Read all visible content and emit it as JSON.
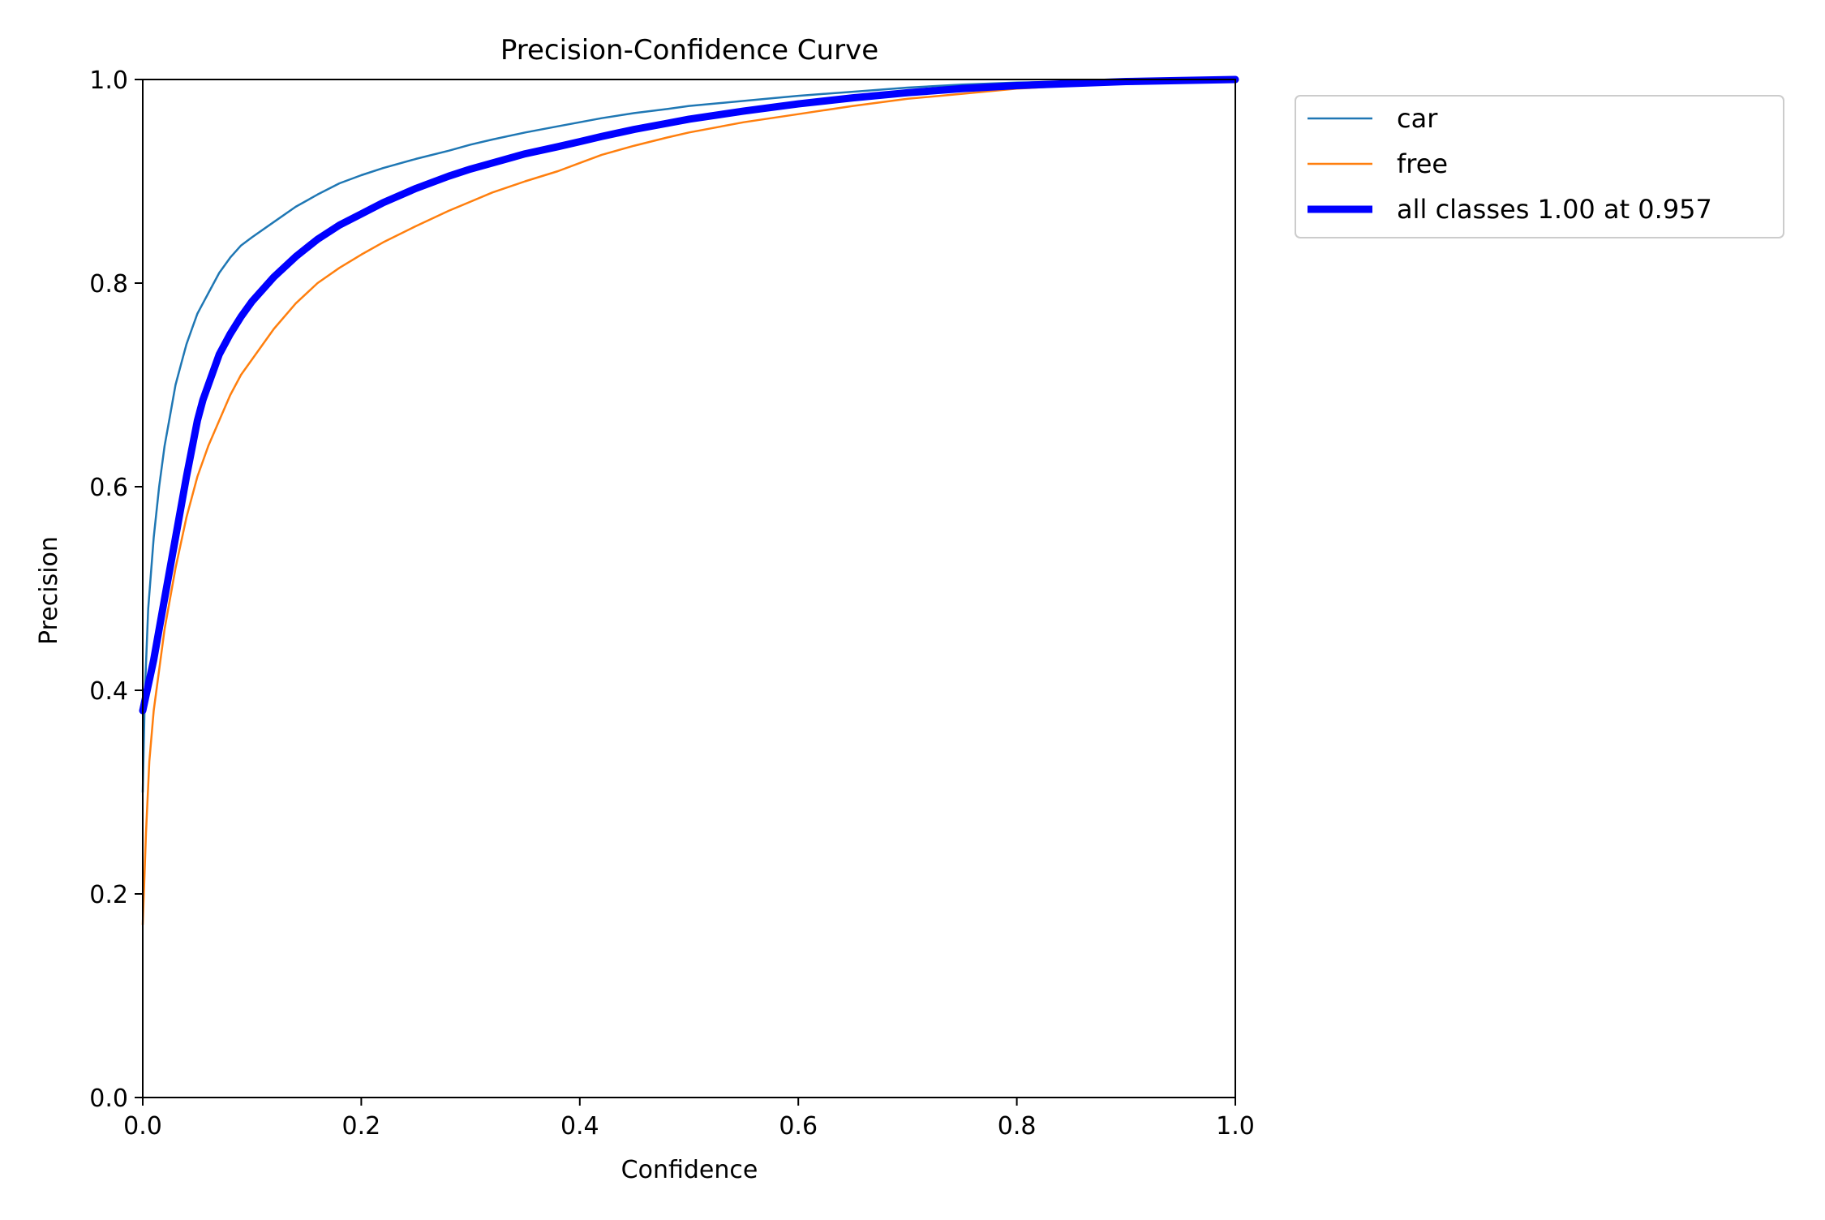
{
  "chart_data": {
    "type": "line",
    "title": "Precision-Confidence Curve",
    "xlabel": "Confidence",
    "ylabel": "Precision",
    "xlim": [
      0,
      1
    ],
    "ylim": [
      0,
      1
    ],
    "x_ticks": [
      0.0,
      0.2,
      0.4,
      0.6,
      0.8,
      1.0
    ],
    "y_ticks": [
      0.0,
      0.2,
      0.4,
      0.6,
      0.8,
      1.0
    ],
    "x_tick_labels": [
      "0.0",
      "0.2",
      "0.4",
      "0.6",
      "0.8",
      "1.0"
    ],
    "y_tick_labels": [
      "0.0",
      "0.2",
      "0.4",
      "0.6",
      "0.8",
      "1.0"
    ],
    "grid": false,
    "legend_position": "outside-top-right",
    "series": [
      {
        "name": "car",
        "legend_label": "car",
        "color": "#1f77b4",
        "x": [
          0.0,
          0.002,
          0.005,
          0.01,
          0.015,
          0.02,
          0.025,
          0.03,
          0.035,
          0.04,
          0.045,
          0.05,
          0.06,
          0.07,
          0.08,
          0.09,
          0.1,
          0.12,
          0.14,
          0.16,
          0.18,
          0.2,
          0.22,
          0.25,
          0.28,
          0.3,
          0.32,
          0.35,
          0.38,
          0.4,
          0.42,
          0.45,
          0.48,
          0.5,
          0.55,
          0.6,
          0.65,
          0.7,
          0.75,
          0.8,
          0.85,
          0.9,
          0.95,
          1.0
        ],
        "values": [
          0.3,
          0.4,
          0.48,
          0.55,
          0.6,
          0.64,
          0.67,
          0.7,
          0.72,
          0.74,
          0.755,
          0.77,
          0.79,
          0.81,
          0.825,
          0.837,
          0.845,
          0.86,
          0.875,
          0.887,
          0.898,
          0.906,
          0.913,
          0.922,
          0.93,
          0.936,
          0.941,
          0.948,
          0.954,
          0.958,
          0.962,
          0.967,
          0.971,
          0.974,
          0.979,
          0.984,
          0.988,
          0.992,
          0.995,
          0.997,
          0.998,
          0.999,
          0.9995,
          1.0
        ]
      },
      {
        "name": "free",
        "legend_label": "free",
        "color": "#ff7f0e",
        "x": [
          0.0,
          0.003,
          0.006,
          0.01,
          0.015,
          0.02,
          0.03,
          0.04,
          0.05,
          0.06,
          0.07,
          0.08,
          0.09,
          0.1,
          0.12,
          0.14,
          0.16,
          0.18,
          0.2,
          0.22,
          0.25,
          0.28,
          0.3,
          0.32,
          0.35,
          0.38,
          0.4,
          0.42,
          0.45,
          0.48,
          0.5,
          0.55,
          0.6,
          0.65,
          0.7,
          0.75,
          0.8,
          0.85,
          0.9,
          0.95,
          1.0
        ],
        "values": [
          0.17,
          0.26,
          0.33,
          0.38,
          0.42,
          0.46,
          0.52,
          0.57,
          0.61,
          0.64,
          0.665,
          0.69,
          0.71,
          0.725,
          0.755,
          0.78,
          0.8,
          0.815,
          0.828,
          0.84,
          0.856,
          0.871,
          0.88,
          0.889,
          0.9,
          0.91,
          0.918,
          0.926,
          0.935,
          0.943,
          0.948,
          0.958,
          0.966,
          0.974,
          0.981,
          0.986,
          0.991,
          0.994,
          0.997,
          0.999,
          1.0
        ]
      },
      {
        "name": "all classes",
        "legend_label": "all classes 1.00 at 0.957",
        "color": "#0000ff",
        "thick": true,
        "x": [
          0.0,
          0.01,
          0.02,
          0.03,
          0.04,
          0.05,
          0.055,
          0.06,
          0.07,
          0.08,
          0.09,
          0.1,
          0.12,
          0.14,
          0.16,
          0.18,
          0.2,
          0.22,
          0.25,
          0.28,
          0.3,
          0.32,
          0.35,
          0.38,
          0.4,
          0.42,
          0.45,
          0.48,
          0.5,
          0.55,
          0.6,
          0.65,
          0.7,
          0.75,
          0.8,
          0.85,
          0.9,
          0.95,
          1.0
        ],
        "values": [
          0.38,
          0.43,
          0.49,
          0.55,
          0.61,
          0.665,
          0.685,
          0.7,
          0.73,
          0.75,
          0.767,
          0.782,
          0.806,
          0.826,
          0.843,
          0.857,
          0.868,
          0.879,
          0.893,
          0.905,
          0.912,
          0.918,
          0.927,
          0.934,
          0.939,
          0.944,
          0.951,
          0.957,
          0.961,
          0.969,
          0.976,
          0.982,
          0.987,
          0.991,
          0.994,
          0.996,
          0.998,
          0.999,
          1.0
        ]
      }
    ]
  }
}
